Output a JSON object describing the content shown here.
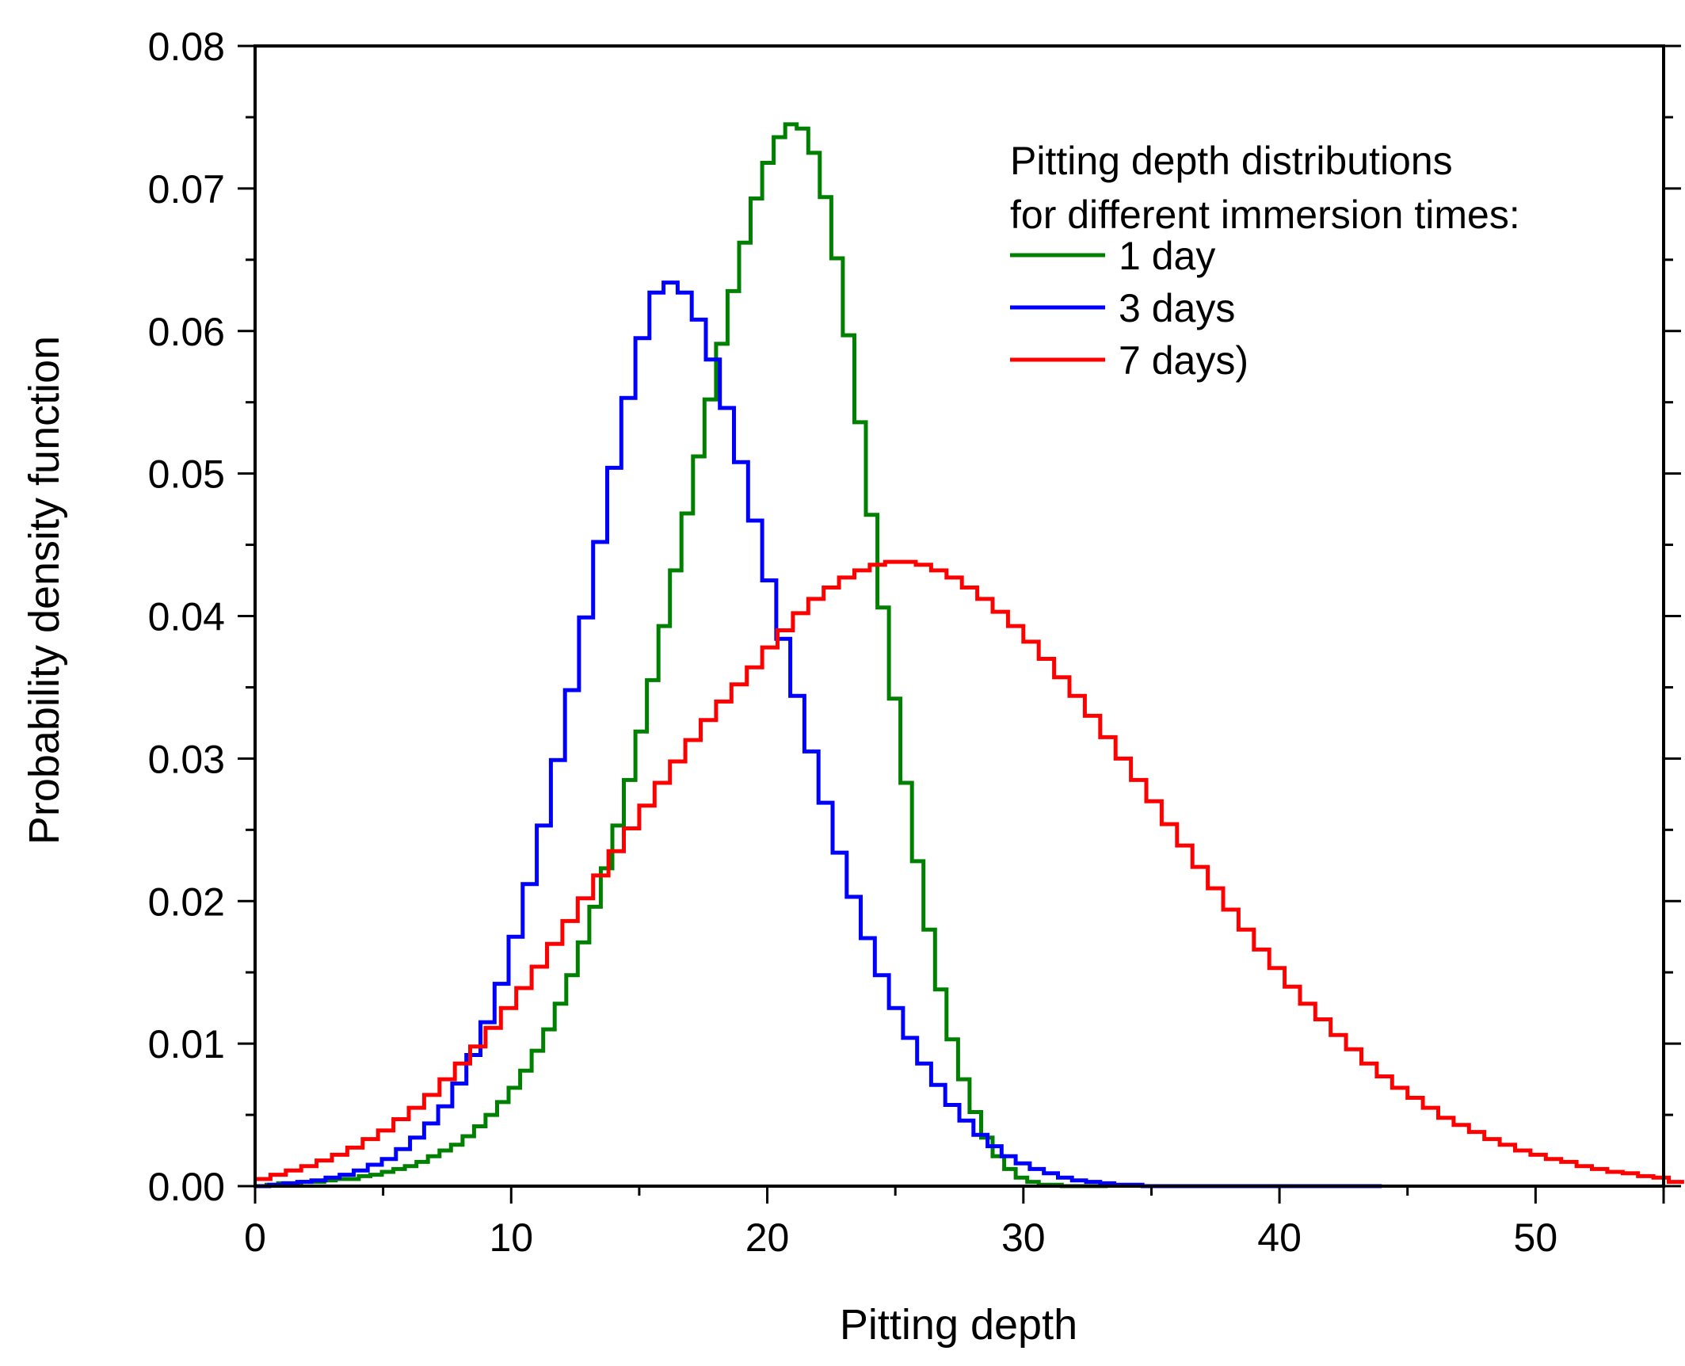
{
  "chart_data": {
    "type": "line",
    "style": "step",
    "title": "",
    "xlabel": "Pitting depth",
    "ylabel": "Probability density function",
    "xlim": [
      0,
      55
    ],
    "ylim": [
      0,
      0.08
    ],
    "xticks": [
      0,
      10,
      20,
      30,
      40,
      50
    ],
    "xtick_labels": [
      "0",
      "10",
      "20",
      "30",
      "40",
      "50"
    ],
    "yticks": [
      0,
      0.01,
      0.02,
      0.03,
      0.04,
      0.05,
      0.06,
      0.07,
      0.08
    ],
    "ytick_labels": [
      "0.00",
      "0.01",
      "0.02",
      "0.03",
      "0.04",
      "0.05",
      "0.06",
      "0.07",
      "0.08"
    ],
    "grid": false,
    "legend": {
      "placement": "top-right",
      "title_lines": [
        "Pitting depth distributions",
        "for different immersion times:"
      ]
    },
    "series": [
      {
        "name": "1 day",
        "color": "#008000",
        "bin_width": 0.45,
        "x_start": 0,
        "values": [
          0.0,
          0.0001,
          0.0002,
          0.0002,
          0.0003,
          0.0003,
          0.0004,
          0.0005,
          0.0005,
          0.0007,
          0.0008,
          0.001,
          0.0012,
          0.0014,
          0.0017,
          0.0021,
          0.0025,
          0.0029,
          0.0035,
          0.0042,
          0.005,
          0.0059,
          0.0069,
          0.0081,
          0.0095,
          0.011,
          0.0128,
          0.0148,
          0.0171,
          0.0196,
          0.0223,
          0.0253,
          0.0285,
          0.0319,
          0.0355,
          0.0393,
          0.0432,
          0.0472,
          0.0512,
          0.0552,
          0.0591,
          0.0628,
          0.0662,
          0.0693,
          0.0718,
          0.0736,
          0.0745,
          0.0742,
          0.0725,
          0.0694,
          0.0651,
          0.0597,
          0.0536,
          0.0471,
          0.0406,
          0.0342,
          0.0283,
          0.0228,
          0.018,
          0.0138,
          0.0103,
          0.0075,
          0.0052,
          0.0034,
          0.0021,
          0.0012,
          0.0006,
          0.0003,
          0.0001,
          0.0001,
          0.0,
          0.0,
          0.0,
          0.0
        ]
      },
      {
        "name": "3 days",
        "color": "#0000ff",
        "bin_width": 0.55,
        "x_start": 0,
        "values": [
          0.0,
          0.0001,
          0.0002,
          0.0003,
          0.0004,
          0.0006,
          0.0008,
          0.0011,
          0.0015,
          0.0019,
          0.0026,
          0.0034,
          0.0044,
          0.0056,
          0.0072,
          0.0092,
          0.0115,
          0.0142,
          0.0175,
          0.0212,
          0.0253,
          0.0299,
          0.0348,
          0.0399,
          0.0452,
          0.0504,
          0.0553,
          0.0595,
          0.0627,
          0.0634,
          0.0627,
          0.0608,
          0.058,
          0.0546,
          0.0508,
          0.0467,
          0.0425,
          0.0384,
          0.0344,
          0.0305,
          0.0269,
          0.0234,
          0.0203,
          0.0174,
          0.0148,
          0.0125,
          0.0104,
          0.0086,
          0.0071,
          0.0057,
          0.0046,
          0.0036,
          0.0028,
          0.0021,
          0.0016,
          0.0012,
          0.0009,
          0.0006,
          0.0004,
          0.0003,
          0.0002,
          0.0001,
          0.0001,
          0.0,
          0.0,
          0.0,
          0.0,
          0.0,
          0.0,
          0.0,
          0.0,
          0.0,
          0.0,
          0.0,
          0.0,
          0.0,
          0.0,
          0.0,
          0.0,
          0.0
        ]
      },
      {
        "name": "7 days)",
        "color": "#ff0000",
        "bin_width": 0.6,
        "x_start": 0,
        "values": [
          0.0005,
          0.0008,
          0.0011,
          0.0014,
          0.0018,
          0.0022,
          0.0027,
          0.0033,
          0.0039,
          0.0047,
          0.0055,
          0.0064,
          0.0075,
          0.0086,
          0.0098,
          0.0111,
          0.0125,
          0.0139,
          0.0154,
          0.017,
          0.0186,
          0.0202,
          0.0218,
          0.0235,
          0.0251,
          0.0267,
          0.0283,
          0.0298,
          0.0313,
          0.0327,
          0.034,
          0.0352,
          0.0364,
          0.0378,
          0.039,
          0.0402,
          0.0412,
          0.042,
          0.0427,
          0.0432,
          0.0436,
          0.0438,
          0.0438,
          0.0436,
          0.0432,
          0.0427,
          0.042,
          0.0412,
          0.0403,
          0.0393,
          0.0382,
          0.037,
          0.0357,
          0.0344,
          0.033,
          0.0315,
          0.03,
          0.0285,
          0.027,
          0.0254,
          0.0239,
          0.0224,
          0.0209,
          0.0194,
          0.018,
          0.0166,
          0.0153,
          0.014,
          0.0128,
          0.0117,
          0.0106,
          0.0096,
          0.0086,
          0.0077,
          0.0069,
          0.0062,
          0.0055,
          0.0048,
          0.0043,
          0.0038,
          0.0033,
          0.0029,
          0.0025,
          0.0022,
          0.0019,
          0.0017,
          0.0014,
          0.0012,
          0.001,
          0.0009,
          0.0007,
          0.0006,
          0.0003
        ]
      }
    ]
  }
}
